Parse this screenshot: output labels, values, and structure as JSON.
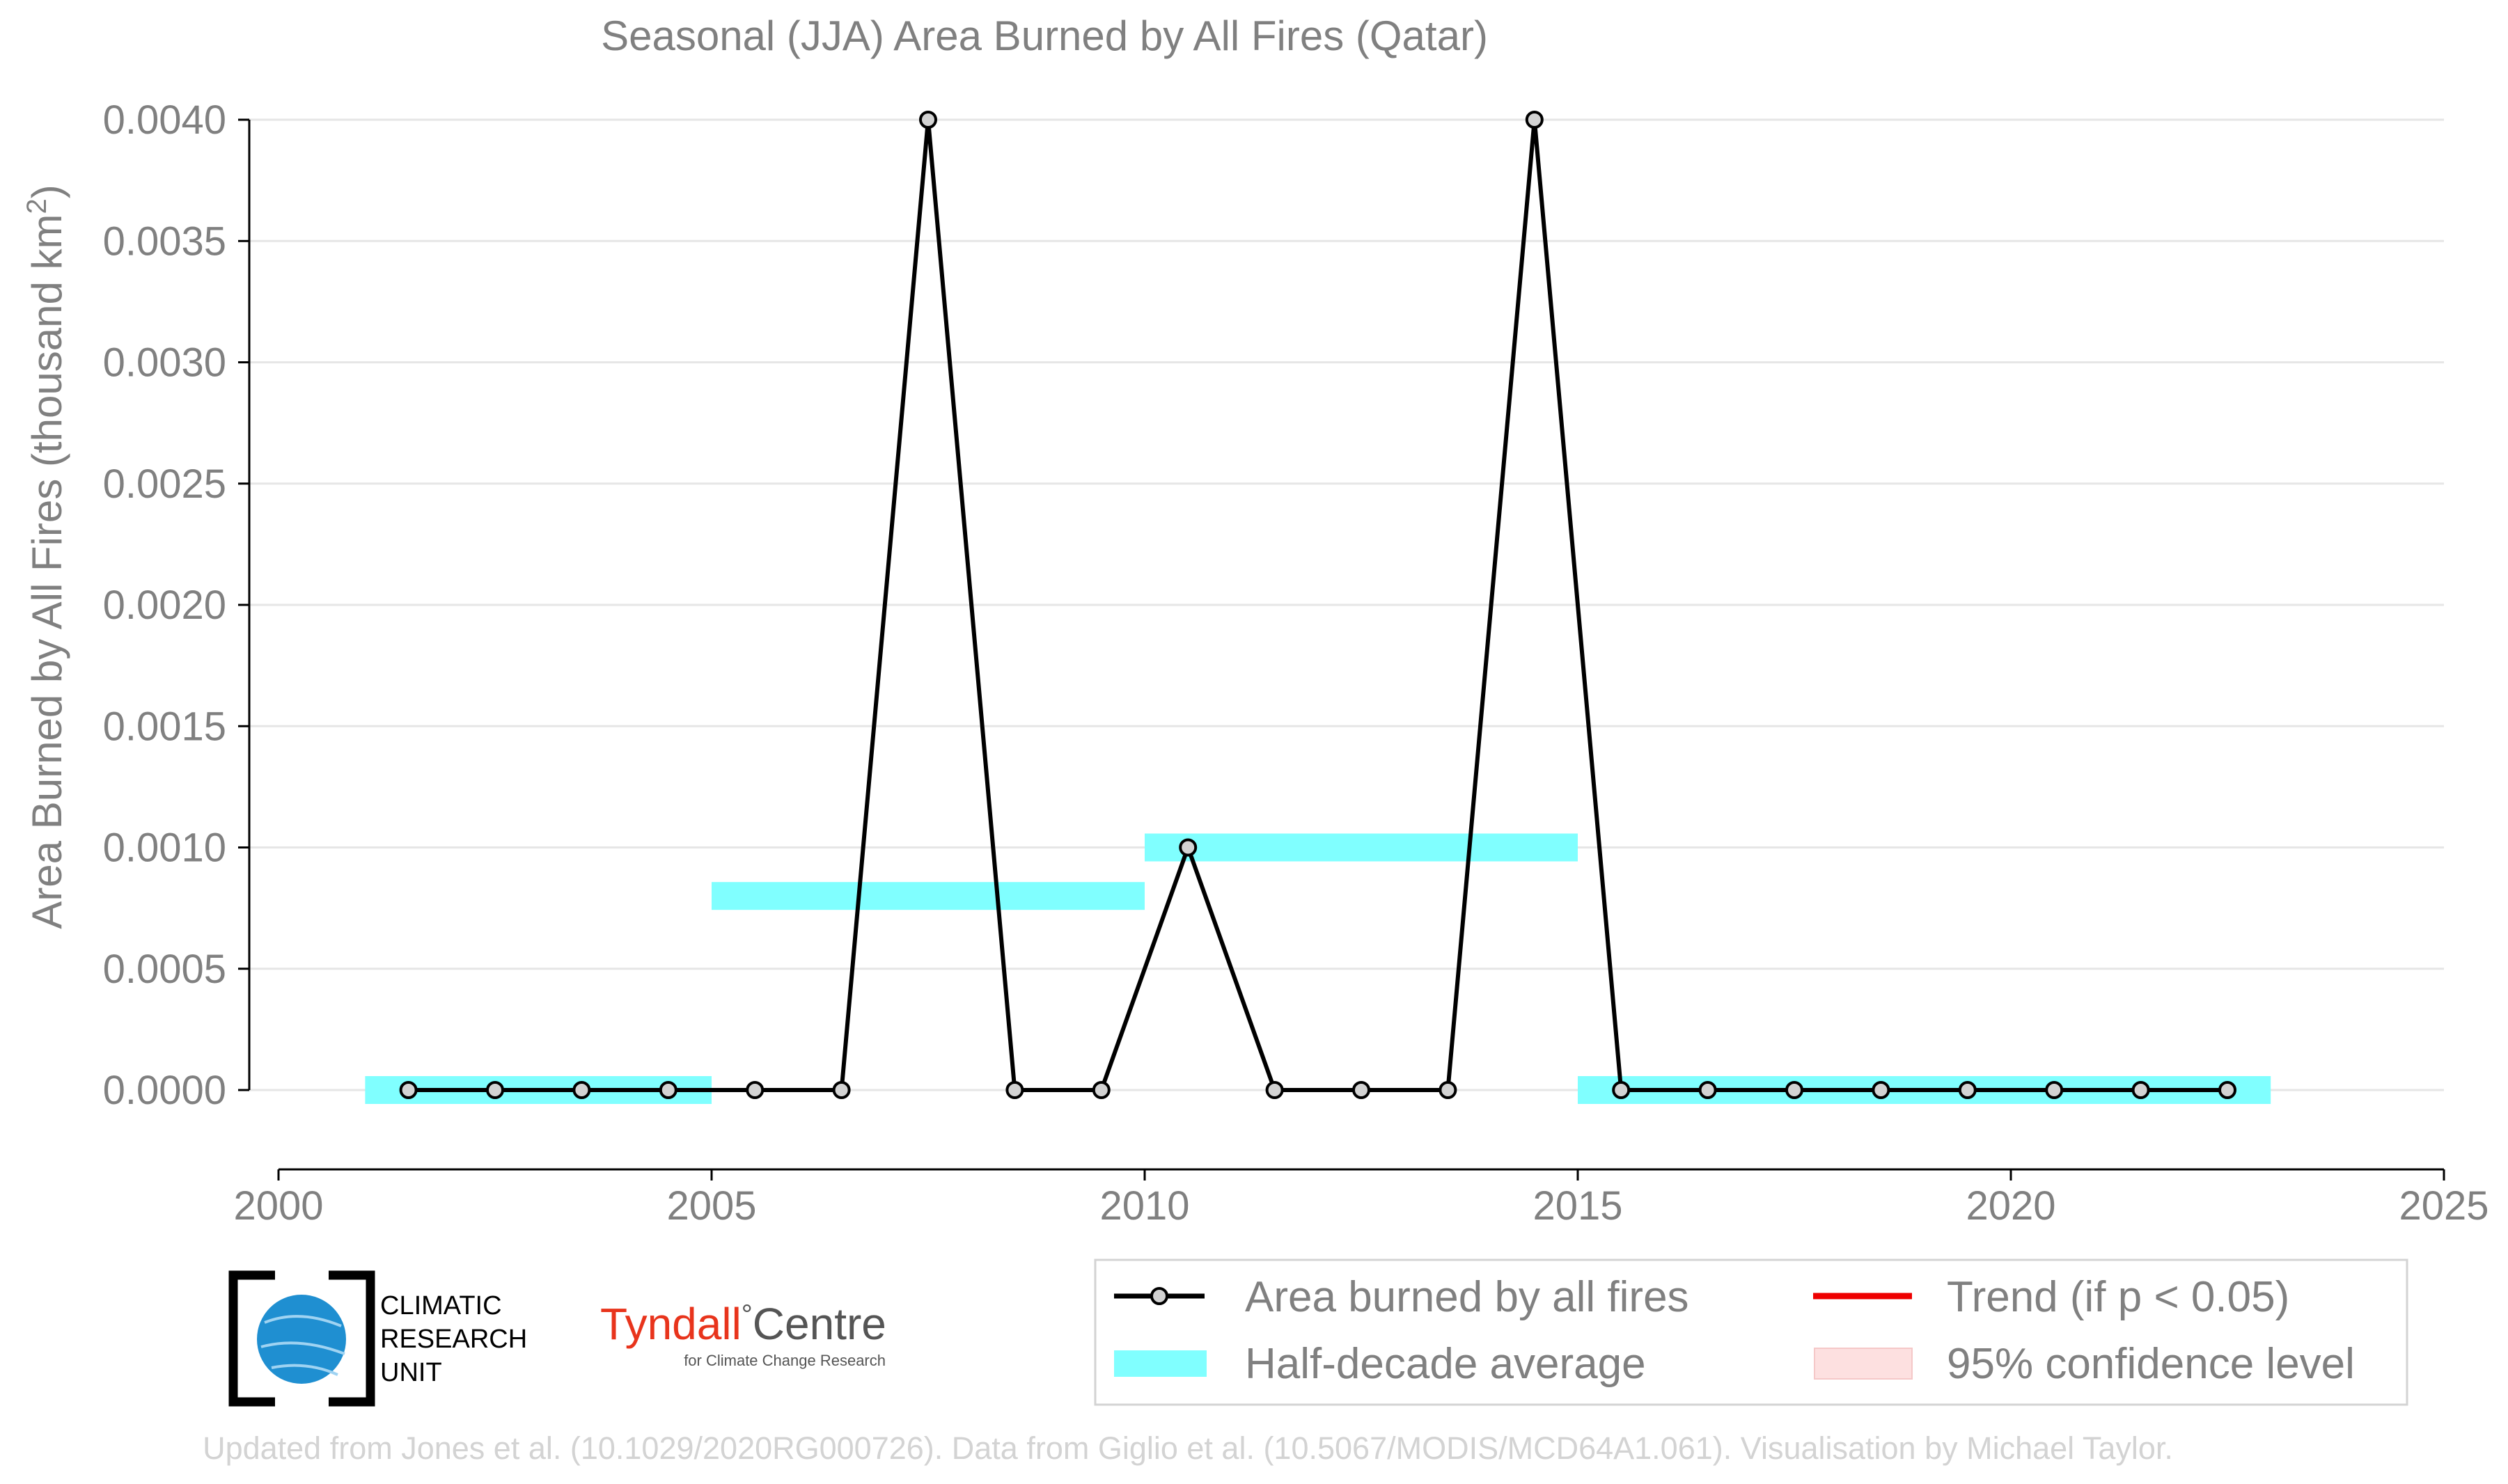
{
  "chart_data": {
    "type": "line",
    "title": "Seasonal (JJA) Area Burned by All Fires (Qatar)",
    "ylabel_main": "Area Burned by All Fires (thousand km",
    "ylabel_sup": "2",
    "ylabel_end": ")",
    "xlim": [
      2000,
      2025
    ],
    "ylim": [
      0,
      0.004
    ],
    "x_ticks": [
      2000,
      2005,
      2010,
      2015,
      2020,
      2025
    ],
    "x_tick_labels": [
      "2000",
      "2005",
      "2010",
      "2015",
      "2020",
      "2025"
    ],
    "y_ticks": [
      0,
      0.0005,
      0.001,
      0.0015,
      0.002,
      0.0025,
      0.003,
      0.0035,
      0.004
    ],
    "y_tick_labels": [
      "0.0000",
      "0.0005",
      "0.0010",
      "0.0015",
      "0.0020",
      "0.0025",
      "0.0030",
      "0.0035",
      "0.0040"
    ],
    "grid": "horizontal",
    "series": [
      {
        "name": "Area burned by all fires",
        "color": "#000000",
        "marker_color": "#d3d3d3",
        "x": [
          2001.5,
          2002.5,
          2003.5,
          2004.5,
          2005.5,
          2006.5,
          2007.5,
          2008.5,
          2009.5,
          2010.5,
          2011.5,
          2012.5,
          2013.5,
          2014.5,
          2015.5,
          2016.5,
          2017.5,
          2018.5,
          2019.5,
          2020.5,
          2021.5,
          2022.5
        ],
        "y": [
          0,
          0,
          0,
          0,
          0,
          0,
          0.004,
          0,
          0,
          0.001,
          0,
          0,
          0,
          0.004,
          0,
          0,
          0,
          0,
          0,
          0,
          0,
          0
        ]
      }
    ],
    "half_decade_averages": {
      "name": "Half-decade average",
      "color": "#80ffff",
      "segments": [
        {
          "x0": 2001,
          "x1": 2005,
          "y": 0
        },
        {
          "x0": 2005,
          "x1": 2010,
          "y": 0.0008
        },
        {
          "x0": 2010,
          "x1": 2015,
          "y": 0.001
        },
        {
          "x0": 2015,
          "x1": 2023,
          "y": 0
        }
      ]
    },
    "legend": {
      "placement": "bottom-right",
      "items": [
        {
          "label": "Area burned by all fires",
          "kind": "line-marker",
          "color": "#000000"
        },
        {
          "label": "Trend (if p < 0.05)",
          "kind": "line",
          "color": "#ee0000"
        },
        {
          "label": "Half-decade average",
          "kind": "band",
          "color": "#80ffff"
        },
        {
          "label": "95% confidence level",
          "kind": "band",
          "color": "#fde0e0"
        }
      ]
    }
  },
  "logos": {
    "cru_lines": [
      "CLIMATIC",
      "RESEARCH",
      "UNIT"
    ],
    "tyndall_name": "Tyndall",
    "tyndall_degree": "°",
    "tyndall_centre": "Centre",
    "tyndall_sub": "for Climate Change Research"
  },
  "credit": "Updated from Jones et al. (10.1029/2020RG000726). Data from Giglio et al. (10.5067/MODIS/MCD64A1.061). Visualisation by Michael Taylor."
}
